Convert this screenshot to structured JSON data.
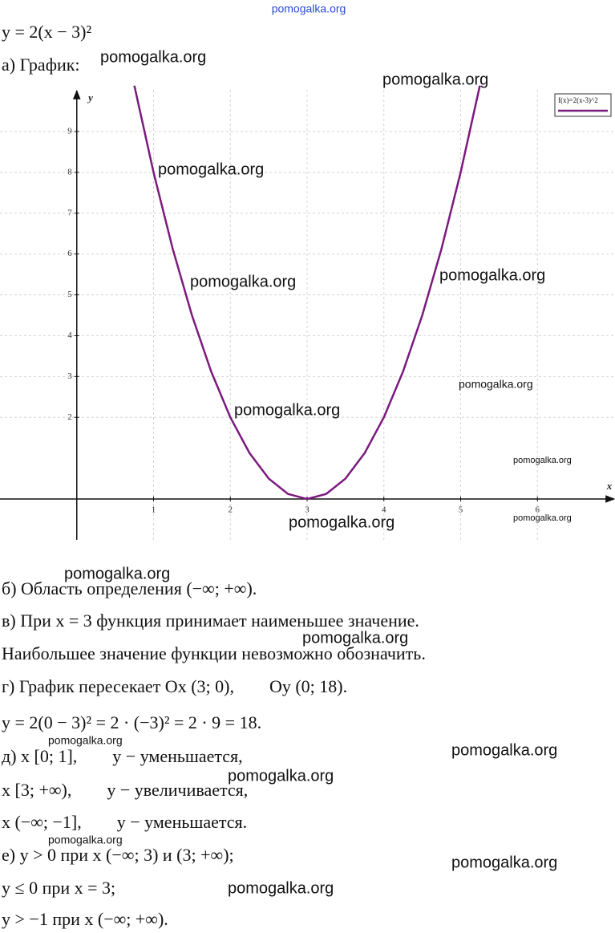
{
  "lines": [
    "y = 2(x − 3)²",
    "а) График:",
    "б) Область определения (−∞; +∞).",
    "в) При x = 3 функция принимает наименьшее значение.",
    "Наибольшее значение функции невозможно обозначить.",
    "г) График пересекает Ox (3; 0),        Oy (0; 18).",
    "y = 2(0 − 3)² = 2 · (−3)² = 2 · 9 = 18.",
    "д) x [0; 1],        y − уменьшается,",
    "x [3; +∞),        y − увеличивается,",
    "x (−∞; −1],        y − уменьшается.",
    "е) y > 0 при x (−∞; 3) и (3; +∞);",
    "y ≤ 0 при x = 3;",
    "y > −1 при x (−∞; +∞)."
  ],
  "chart_data": {
    "type": "line",
    "x_label": "x",
    "y_label": "y",
    "x": [
      0.75,
      1,
      1.25,
      1.5,
      1.75,
      2,
      2.25,
      2.5,
      2.75,
      3,
      3.25,
      3.5,
      3.75,
      4,
      4.25,
      4.5,
      4.75,
      5,
      5.25
    ],
    "series": [
      {
        "name": "f(x)=2(x-3)^2",
        "color": "#7b1a7e",
        "values": [
          10.125,
          8,
          6.125,
          4.5,
          3.125,
          2,
          1.125,
          0.5,
          0.125,
          0,
          0.125,
          0.5,
          1.125,
          2,
          3.125,
          4.5,
          6.125,
          8,
          10.125
        ]
      }
    ],
    "xlim": [
      -1,
      7
    ],
    "ylim": [
      -1,
      10.2
    ],
    "xticks": [
      1,
      2,
      3,
      4,
      5,
      6
    ],
    "yticks": [
      2,
      3,
      4,
      5,
      6,
      7,
      8,
      9
    ],
    "grid": true,
    "legend": "top-right"
  },
  "watermarks": [
    "pomogalka.org",
    "pomogalka.org",
    "pomogalka.org",
    "pomogalka.org",
    "pomogalka.org",
    "pomogalka.org",
    "pomogalka.org",
    "pomogalka.org",
    "pomogalka.org",
    "pomogalka.org",
    "pomogalka.org",
    "pomogalka.org",
    "pomogalka.org",
    "pomogalka.org",
    "pomogalka.org",
    "pomogalka.org",
    "pomogalka.org",
    "pomogalka.org",
    "pomogalka.org"
  ]
}
